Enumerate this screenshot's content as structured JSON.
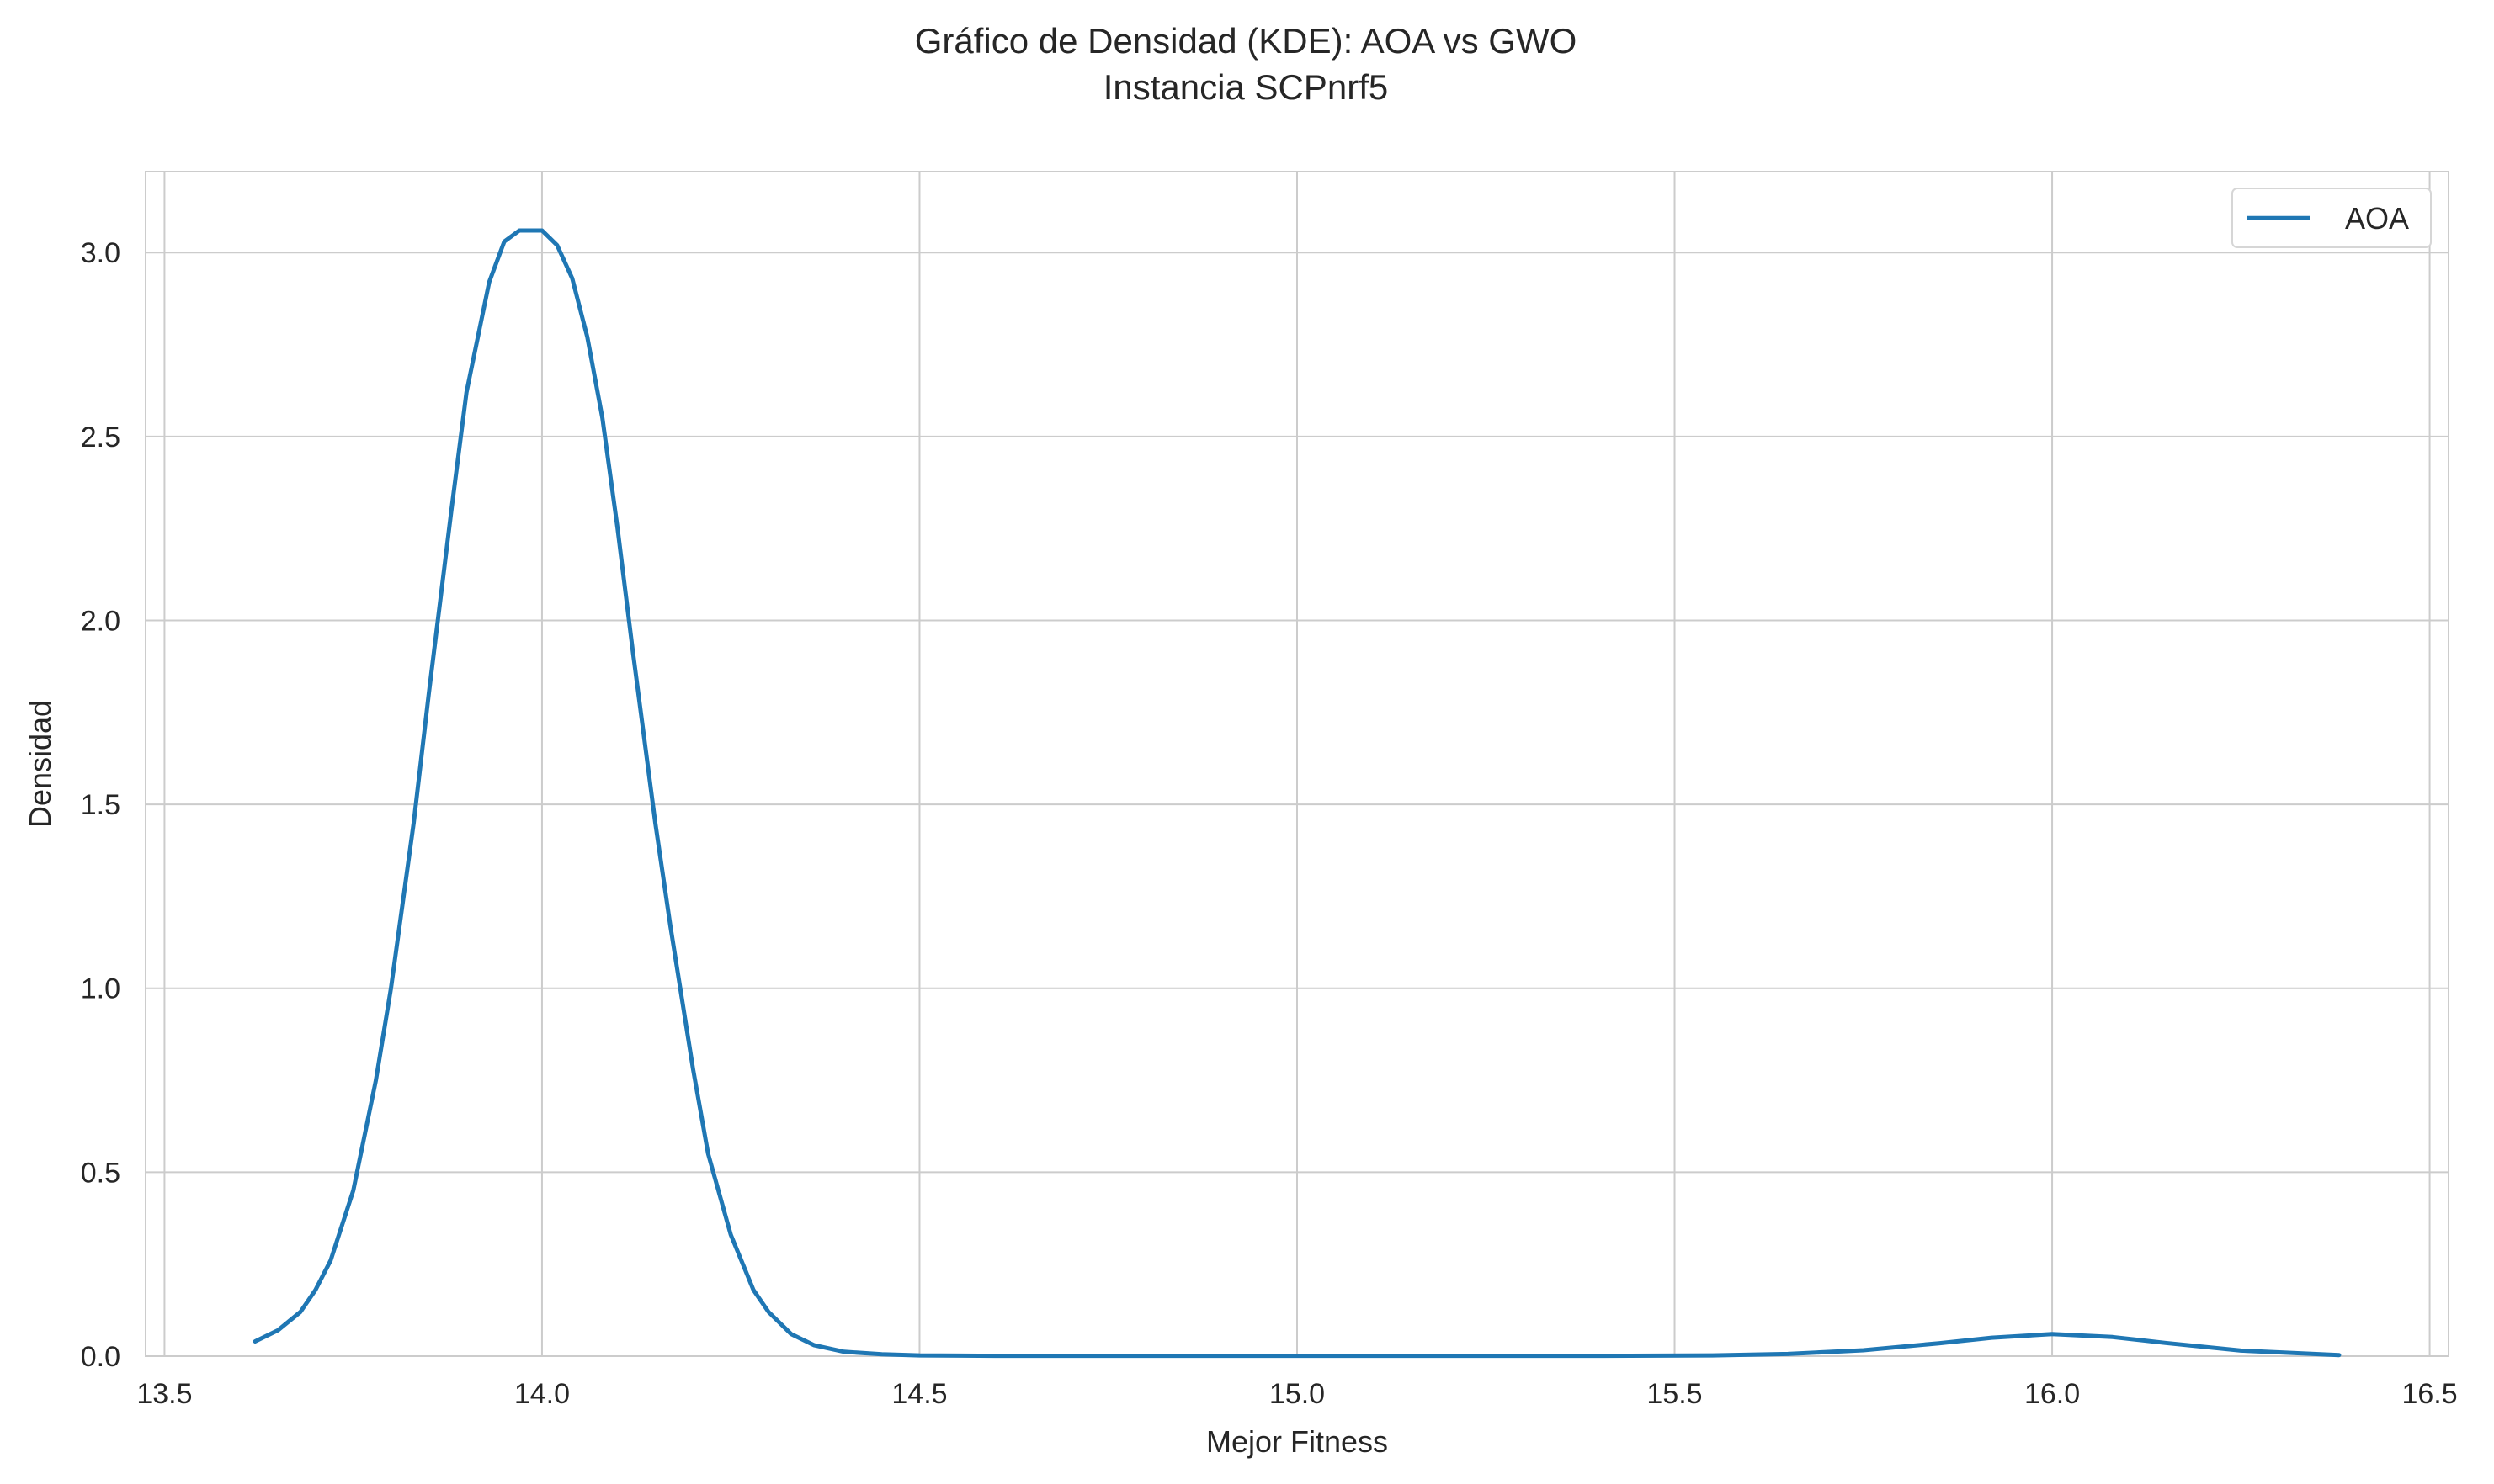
{
  "chart_data": {
    "type": "line",
    "title": "Gráfico de Densidad (KDE): AOA vs GWO",
    "subtitle": "Instancia SCPnrf5",
    "xlabel": "Mejor Fitness",
    "ylabel": "Densidad",
    "xlim": [
      13.475,
      16.525
    ],
    "ylim": [
      0.0,
      3.22
    ],
    "xticks": [
      13.5,
      14.0,
      14.5,
      15.0,
      15.5,
      16.0,
      16.5
    ],
    "xtick_labels": [
      "13.5",
      "14.0",
      "14.5",
      "15.0",
      "15.5",
      "16.0",
      "16.5"
    ],
    "yticks": [
      0.0,
      0.5,
      1.0,
      1.5,
      2.0,
      2.5,
      3.0
    ],
    "ytick_labels": [
      "0.0",
      "0.5",
      "1.0",
      "1.5",
      "2.0",
      "2.5",
      "3.0"
    ],
    "grid": true,
    "legend_position": "top-right",
    "series": [
      {
        "name": "AOA",
        "color": "#1f77b4",
        "x": [
          13.62,
          13.65,
          13.68,
          13.7,
          13.72,
          13.75,
          13.78,
          13.8,
          13.83,
          13.85,
          13.88,
          13.9,
          13.93,
          13.95,
          13.97,
          14.0,
          14.02,
          14.04,
          14.06,
          14.08,
          14.1,
          14.12,
          14.15,
          14.17,
          14.2,
          14.22,
          14.25,
          14.28,
          14.3,
          14.33,
          14.36,
          14.4,
          14.45,
          14.5,
          14.6,
          14.8,
          15.0,
          15.2,
          15.4,
          15.55,
          15.65,
          15.75,
          15.85,
          15.92,
          16.0,
          16.08,
          16.15,
          16.25,
          16.38
        ],
        "y": [
          0.04,
          0.07,
          0.12,
          0.18,
          0.26,
          0.45,
          0.75,
          1.0,
          1.45,
          1.8,
          2.3,
          2.62,
          2.92,
          3.03,
          3.06,
          3.06,
          3.02,
          2.93,
          2.77,
          2.55,
          2.25,
          1.92,
          1.45,
          1.17,
          0.78,
          0.55,
          0.33,
          0.18,
          0.12,
          0.06,
          0.03,
          0.012,
          0.005,
          0.002,
          0.001,
          0.001,
          0.001,
          0.001,
          0.001,
          0.002,
          0.006,
          0.016,
          0.035,
          0.05,
          0.06,
          0.052,
          0.036,
          0.015,
          0.003
        ]
      }
    ]
  }
}
